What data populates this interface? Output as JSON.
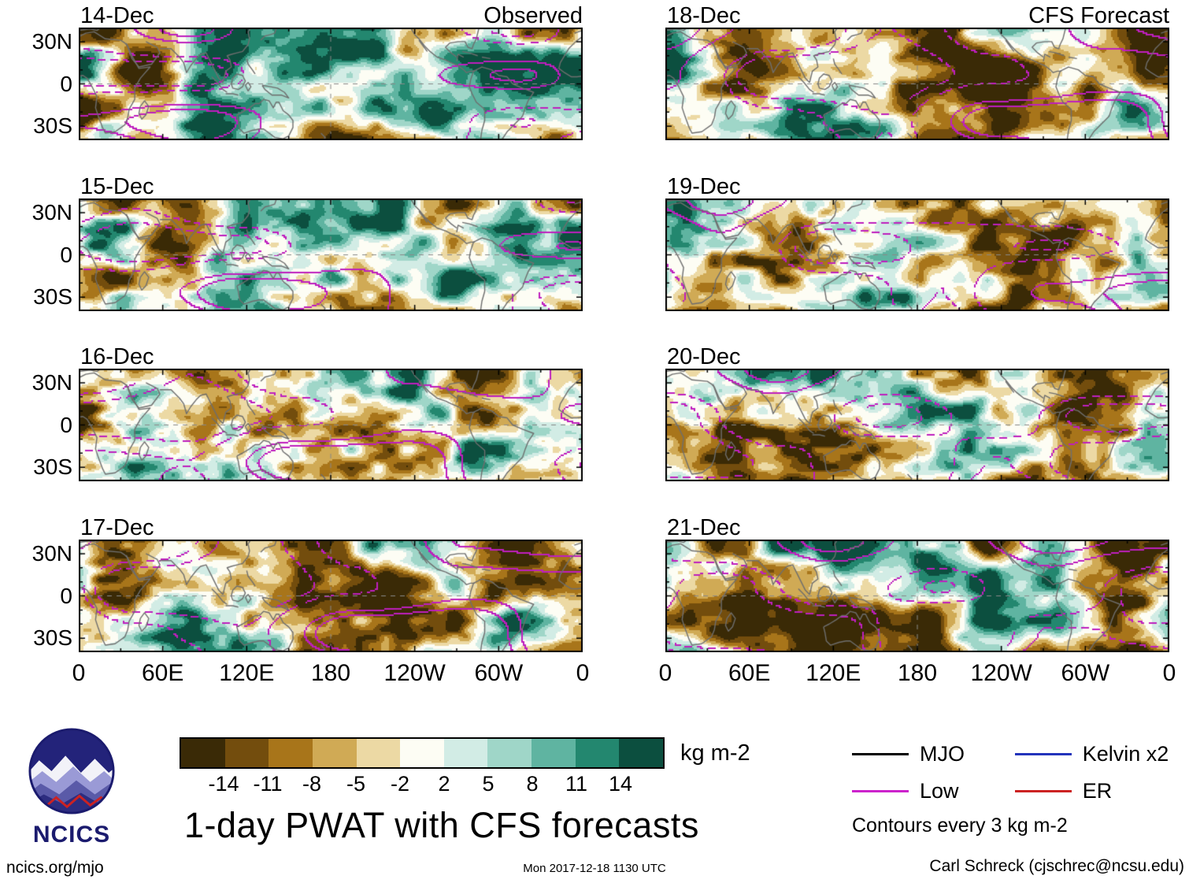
{
  "chart_data": {
    "type": "heatmap",
    "title": "1-day PWAT with CFS forecasts",
    "units": "kg m-2",
    "columns": [
      {
        "heading": "Observed",
        "dates": [
          "14-Dec",
          "15-Dec",
          "16-Dec",
          "17-Dec"
        ]
      },
      {
        "heading": "CFS Forecast",
        "dates": [
          "18-Dec",
          "19-Dec",
          "20-Dec",
          "21-Dec"
        ]
      }
    ],
    "x_ticks": [
      "0",
      "60E",
      "120E",
      "180",
      "120W",
      "60W",
      "0"
    ],
    "y_ticks": [
      "30N",
      "0",
      "30S"
    ],
    "lon_range": [
      0,
      360
    ],
    "lat_range": [
      -40,
      40
    ],
    "colorbar": {
      "label": "kg m-2",
      "ticks": [
        -14,
        -11,
        -8,
        -5,
        -2,
        2,
        5,
        8,
        11,
        14
      ],
      "colors": [
        "#3a2a06",
        "#734d0d",
        "#a8751a",
        "#d0aa55",
        "#ecd9a4",
        "#fdfdf4",
        "#d2ece5",
        "#9fd6c8",
        "#5fb4a1",
        "#23876f",
        "#0c4f3f"
      ]
    },
    "legend": [
      {
        "label": "MJO",
        "color": "#000000"
      },
      {
        "label": "Low",
        "color": "#cc22cc"
      },
      {
        "label": "Kelvin x2",
        "color": "#2233bb"
      },
      {
        "label": "ER",
        "color": "#cc2222"
      }
    ],
    "contour_note": "Contours every 3 kg m-2",
    "contour_color": "#be1ebe",
    "basemap": {
      "coastlines": [
        [
          [
            -16,
            15
          ],
          [
            -10,
            25
          ],
          [
            -5,
            30
          ],
          [
            -1,
            33
          ],
          [
            5,
            36
          ],
          [
            11,
            37
          ],
          [
            19,
            32
          ],
          [
            30,
            31
          ],
          [
            33,
            29
          ],
          [
            35,
            27
          ],
          [
            38,
            20
          ],
          [
            43,
            11
          ],
          [
            51,
            12
          ],
          [
            44,
            4
          ],
          [
            40,
            -3
          ],
          [
            40,
            -11
          ],
          [
            36,
            -18
          ],
          [
            35,
            -24
          ],
          [
            33,
            -29
          ],
          [
            26,
            -34
          ],
          [
            19,
            -35
          ],
          [
            17,
            -31
          ],
          [
            14,
            -23
          ],
          [
            12,
            -17
          ],
          [
            13,
            -9
          ],
          [
            9,
            -1
          ],
          [
            6,
            4
          ],
          [
            3,
            6
          ],
          [
            -4,
            5
          ],
          [
            -8,
            5
          ],
          [
            -13,
            8
          ],
          [
            -17,
            11
          ],
          [
            -16,
            15
          ]
        ],
        [
          [
            44,
            -16
          ],
          [
            47,
            -12
          ],
          [
            50,
            -16
          ],
          [
            48,
            -22
          ],
          [
            45,
            -25
          ],
          [
            43,
            -21
          ],
          [
            44,
            -16
          ]
        ],
        [
          [
            34,
            29
          ],
          [
            38,
            18
          ],
          [
            43,
            12
          ],
          [
            52,
            14
          ],
          [
            58,
            22
          ],
          [
            56,
            26
          ],
          [
            48,
            30
          ]
        ],
        [
          [
            58,
            25
          ],
          [
            62,
            25
          ],
          [
            66,
            25
          ],
          [
            70,
            21
          ],
          [
            72,
            19
          ],
          [
            75,
            15
          ],
          [
            77,
            8
          ],
          [
            80,
            13
          ],
          [
            84,
            18
          ],
          [
            87,
            21
          ],
          [
            91,
            22
          ],
          [
            92,
            20
          ],
          [
            94,
            16
          ],
          [
            97,
            10
          ],
          [
            100,
            4
          ],
          [
            103,
            1
          ]
        ],
        [
          [
            103,
            1
          ],
          [
            105,
            9
          ],
          [
            109,
            12
          ],
          [
            108,
            17
          ],
          [
            106,
            20
          ],
          [
            109,
            21
          ],
          [
            113,
            22
          ],
          [
            117,
            23
          ],
          [
            121,
            28
          ],
          [
            122,
            32
          ],
          [
            121,
            37
          ],
          [
            123,
            40
          ]
        ],
        [
          [
            95,
            5
          ],
          [
            99,
            1
          ],
          [
            103,
            -4
          ],
          [
            106,
            -6
          ]
        ],
        [
          [
            105,
            -7
          ],
          [
            110,
            -7
          ],
          [
            114,
            -8
          ]
        ],
        [
          [
            109,
            0
          ],
          [
            110,
            -3
          ],
          [
            114,
            -4
          ],
          [
            117,
            -2
          ],
          [
            119,
            2
          ],
          [
            117,
            6
          ],
          [
            113,
            7
          ],
          [
            110,
            4
          ],
          [
            109,
            0
          ]
        ],
        [
          [
            119,
            -1
          ],
          [
            121,
            -5
          ],
          [
            123,
            -2
          ],
          [
            121,
            1
          ],
          [
            119,
            -1
          ]
        ],
        [
          [
            131,
            -1
          ],
          [
            137,
            -2
          ],
          [
            142,
            -3
          ],
          [
            147,
            -6
          ],
          [
            150,
            -10
          ],
          [
            145,
            -8
          ],
          [
            138,
            -8
          ],
          [
            133,
            -4
          ],
          [
            131,
            -1
          ]
        ],
        [
          [
            120,
            18
          ],
          [
            121,
            14
          ],
          [
            124,
            10
          ],
          [
            126,
            7
          ]
        ],
        [
          [
            130,
            31
          ],
          [
            133,
            34
          ],
          [
            137,
            35
          ],
          [
            140,
            36
          ],
          [
            141,
            39
          ]
        ],
        [
          [
            113,
            -22
          ],
          [
            114,
            -26
          ],
          [
            115,
            -32
          ],
          [
            118,
            -35
          ],
          [
            124,
            -33
          ],
          [
            129,
            -32
          ],
          [
            132,
            -32
          ],
          [
            136,
            -35
          ],
          [
            140,
            -38
          ],
          [
            146,
            -39
          ],
          [
            150,
            -37
          ],
          [
            153,
            -31
          ],
          [
            153,
            -26
          ],
          [
            150,
            -22
          ],
          [
            146,
            -19
          ],
          [
            143,
            -13
          ],
          [
            141,
            -13
          ],
          [
            139,
            -17
          ],
          [
            136,
            -12
          ],
          [
            132,
            -11
          ],
          [
            129,
            -14
          ],
          [
            126,
            -14
          ],
          [
            122,
            -17
          ],
          [
            117,
            -20
          ],
          [
            113,
            -22
          ]
        ],
        [
          [
            173,
            -35
          ],
          [
            176,
            -38
          ],
          [
            175,
            -40
          ]
        ],
        [
          [
            282,
            9
          ],
          [
            288,
            12
          ],
          [
            295,
            10
          ],
          [
            300,
            6
          ],
          [
            306,
            5
          ],
          [
            310,
            0
          ],
          [
            317,
            -3
          ],
          [
            325,
            -6
          ],
          [
            321,
            -12
          ],
          [
            319,
            -17
          ],
          [
            317,
            -23
          ],
          [
            311,
            -29
          ],
          [
            306,
            -34
          ],
          [
            302,
            -40
          ],
          [
            287,
            -40
          ],
          [
            288,
            -33
          ],
          [
            290,
            -26
          ],
          [
            290,
            -18
          ],
          [
            284,
            -13
          ],
          [
            281,
            -7
          ],
          [
            279,
            -2
          ],
          [
            280,
            3
          ],
          [
            282,
            9
          ]
        ],
        [
          [
            262,
            17
          ],
          [
            266,
            15
          ],
          [
            271,
            13
          ],
          [
            275,
            10
          ],
          [
            277,
            8
          ],
          [
            280,
            9
          ],
          [
            283,
            9
          ]
        ],
        [
          [
            270,
            16
          ],
          [
            271,
            21
          ],
          [
            275,
            19
          ]
        ],
        [
          [
            262,
            17
          ],
          [
            256,
            19
          ],
          [
            251,
            23
          ],
          [
            247,
            27
          ],
          [
            243,
            32
          ],
          [
            240,
            35
          ],
          [
            237,
            40
          ]
        ],
        [
          [
            243,
            31
          ],
          [
            246,
            27
          ],
          [
            249,
            23
          ]
        ],
        [
          [
            270,
            19
          ],
          [
            266,
            22
          ],
          [
            262,
            26
          ],
          [
            265,
            29
          ],
          [
            271,
            30
          ],
          [
            276,
            30
          ],
          [
            278,
            26
          ],
          [
            281,
            25
          ],
          [
            282,
            28
          ],
          [
            284,
            32
          ],
          [
            285,
            36
          ],
          [
            286,
            40
          ]
        ],
        [
          [
            274,
            23
          ],
          [
            279,
            22
          ],
          [
            285,
            20
          ]
        ],
        [
          [
            288,
            19
          ],
          [
            294,
            18
          ]
        ],
        [
          [
            -6,
            36
          ],
          [
            0,
            38
          ],
          [
            8,
            39
          ],
          [
            13,
            38
          ],
          [
            16,
            40
          ]
        ]
      ]
    }
  },
  "branding": {
    "logo_text": "NCICS"
  },
  "footer": {
    "left": "ncics.org/mjo",
    "center": "Mon 2017-12-18 1130 UTC",
    "right": "Carl Schreck (cjschrec@ncsu.edu)"
  }
}
